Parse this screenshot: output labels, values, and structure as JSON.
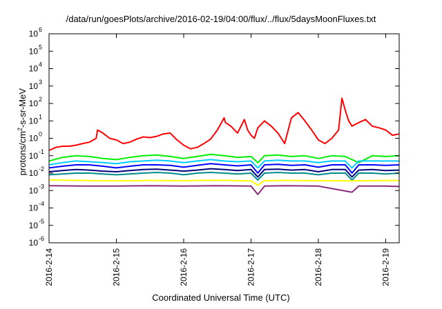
{
  "chart_data": {
    "type": "line",
    "title": "/data/run/goesPlots/archive/2016-02-19/04:00/flux/../flux/5daysMoonFluxes.txt",
    "xlabel": "Coordinated Universal Time (UTC)",
    "ylabel_parts": {
      "pre": "protons/cm",
      "sup": "2",
      "post": "-s-sr-MeV"
    },
    "y_scale": "log",
    "ylim": [
      1e-06,
      1000000.0
    ],
    "y_ticks": [
      {
        "base": "10",
        "exp": "-6",
        "value": 1e-06
      },
      {
        "base": "10",
        "exp": "-5",
        "value": 1e-05
      },
      {
        "base": "10",
        "exp": "-4",
        "value": 0.0001
      },
      {
        "base": "10",
        "exp": "-3",
        "value": 0.001
      },
      {
        "base": "10",
        "exp": "-2",
        "value": 0.01
      },
      {
        "base": "10",
        "exp": "-1",
        "value": 0.1
      },
      {
        "base": "10",
        "exp": "0",
        "value": 1
      },
      {
        "base": "10",
        "exp": "1",
        "value": 10
      },
      {
        "base": "10",
        "exp": "2",
        "value": 100
      },
      {
        "base": "10",
        "exp": "3",
        "value": 1000
      },
      {
        "base": "10",
        "exp": "4",
        "value": 10000
      },
      {
        "base": "10",
        "exp": "5",
        "value": 100000
      },
      {
        "base": "10",
        "exp": "6",
        "value": 1000000
      }
    ],
    "x_ticks": [
      "2016-2-14",
      "2016-2-15",
      "2016-2-16",
      "2016-2-17",
      "2016-2-18",
      "2016-2-19"
    ],
    "x_range_days": [
      0,
      5.2
    ],
    "grid": false,
    "legend": "none",
    "series": [
      {
        "color": "#ff0000",
        "x": [
          0,
          0.1,
          0.2,
          0.3,
          0.4,
          0.5,
          0.6,
          0.7,
          0.72,
          0.8,
          0.9,
          1.0,
          1.1,
          1.2,
          1.3,
          1.4,
          1.5,
          1.6,
          1.7,
          1.8,
          1.9,
          2.0,
          2.1,
          2.2,
          2.3,
          2.4,
          2.5,
          2.6,
          2.62,
          2.7,
          2.8,
          2.9,
          2.95,
          3.0,
          3.05,
          3.1,
          3.2,
          3.3,
          3.4,
          3.45,
          3.5,
          3.6,
          3.7,
          3.8,
          3.9,
          4.0,
          4.1,
          4.2,
          4.3,
          4.35,
          4.4,
          4.45,
          4.5,
          4.6,
          4.7,
          4.8,
          4.9,
          5.0,
          5.1,
          5.2
        ],
        "values": [
          0.2,
          0.3,
          0.35,
          0.35,
          0.4,
          0.5,
          0.6,
          1.0,
          3.0,
          2.0,
          1.0,
          0.8,
          0.5,
          0.6,
          0.9,
          1.2,
          1.1,
          1.3,
          1.8,
          2.0,
          0.8,
          0.4,
          0.25,
          0.3,
          0.5,
          0.9,
          3.0,
          15.0,
          8.0,
          5.0,
          2.0,
          12.0,
          3.0,
          1.5,
          1.0,
          4.0,
          10.0,
          5.0,
          2.0,
          1.0,
          0.5,
          15.0,
          30.0,
          10.0,
          3.0,
          0.8,
          0.5,
          1.0,
          3.0,
          200.0,
          40.0,
          10.0,
          5.0,
          8.0,
          12.0,
          5.0,
          4.0,
          3.0,
          1.5,
          1.8
        ]
      },
      {
        "color": "#00ee00",
        "x": [
          0,
          0.2,
          0.4,
          0.6,
          0.8,
          1.0,
          1.2,
          1.4,
          1.6,
          1.8,
          2.0,
          2.2,
          2.4,
          2.6,
          2.8,
          3.0,
          3.1,
          3.2,
          3.4,
          3.6,
          3.8,
          4.0,
          4.2,
          4.4,
          4.6,
          4.8,
          5.0,
          5.2
        ],
        "values": [
          0.05,
          0.08,
          0.1,
          0.09,
          0.07,
          0.06,
          0.08,
          0.1,
          0.11,
          0.09,
          0.07,
          0.09,
          0.12,
          0.1,
          0.08,
          0.09,
          0.04,
          0.1,
          0.11,
          0.09,
          0.1,
          0.07,
          0.1,
          0.09,
          0.04,
          0.1,
          0.09,
          0.1
        ]
      },
      {
        "color": "#00ccff",
        "x": [
          0,
          0.2,
          0.4,
          0.6,
          0.8,
          1.0,
          1.2,
          1.4,
          1.6,
          1.8,
          2.0,
          2.2,
          2.4,
          2.6,
          2.8,
          3.0,
          3.1,
          3.2,
          3.4,
          3.6,
          3.8,
          4.0,
          4.2,
          4.4,
          4.5,
          4.6,
          4.8,
          5.0,
          5.2
        ],
        "values": [
          0.03,
          0.04,
          0.05,
          0.045,
          0.04,
          0.035,
          0.045,
          0.05,
          0.055,
          0.05,
          0.04,
          0.05,
          0.06,
          0.05,
          0.045,
          0.05,
          0.02,
          0.05,
          0.055,
          0.05,
          0.05,
          0.04,
          0.05,
          0.05,
          0.02,
          0.05,
          0.05,
          0.05,
          0.05
        ]
      },
      {
        "color": "#0000ff",
        "x": [
          0,
          0.2,
          0.4,
          0.6,
          0.8,
          1.0,
          1.2,
          1.4,
          1.6,
          1.8,
          2.0,
          2.2,
          2.4,
          2.6,
          2.8,
          3.0,
          3.1,
          3.2,
          3.4,
          3.6,
          3.8,
          4.0,
          4.2,
          4.4,
          4.5,
          4.6,
          4.8,
          5.0,
          5.2
        ],
        "values": [
          0.02,
          0.025,
          0.03,
          0.03,
          0.025,
          0.02,
          0.025,
          0.03,
          0.03,
          0.028,
          0.022,
          0.028,
          0.035,
          0.03,
          0.026,
          0.03,
          0.01,
          0.03,
          0.032,
          0.028,
          0.03,
          0.022,
          0.03,
          0.03,
          0.01,
          0.03,
          0.03,
          0.028,
          0.03
        ]
      },
      {
        "color": "#000080",
        "x": [
          0,
          0.2,
          0.4,
          0.6,
          0.8,
          1.0,
          1.2,
          1.4,
          1.6,
          1.8,
          2.0,
          2.2,
          2.4,
          2.6,
          2.8,
          3.0,
          3.1,
          3.2,
          3.4,
          3.6,
          3.8,
          4.0,
          4.2,
          4.4,
          4.5,
          4.6,
          4.8,
          5.0,
          5.2
        ],
        "values": [
          0.012,
          0.014,
          0.016,
          0.015,
          0.013,
          0.012,
          0.014,
          0.016,
          0.017,
          0.015,
          0.013,
          0.015,
          0.018,
          0.016,
          0.014,
          0.016,
          0.006,
          0.016,
          0.017,
          0.015,
          0.016,
          0.012,
          0.016,
          0.016,
          0.006,
          0.015,
          0.016,
          0.014,
          0.015
        ]
      },
      {
        "color": "#008b8b",
        "x": [
          0,
          0.2,
          0.4,
          0.6,
          0.8,
          1.0,
          1.2,
          1.4,
          1.6,
          1.8,
          2.0,
          2.2,
          2.4,
          2.6,
          2.8,
          3.0,
          3.1,
          3.2,
          3.4,
          3.6,
          3.8,
          4.0,
          4.2,
          4.4,
          4.5,
          4.6,
          4.8,
          5.0,
          5.2
        ],
        "values": [
          0.008,
          0.009,
          0.01,
          0.01,
          0.009,
          0.008,
          0.009,
          0.01,
          0.011,
          0.01,
          0.008,
          0.01,
          0.011,
          0.01,
          0.009,
          0.01,
          0.004,
          0.01,
          0.011,
          0.01,
          0.01,
          0.008,
          0.01,
          0.01,
          0.004,
          0.01,
          0.01,
          0.009,
          0.01
        ]
      },
      {
        "color": "#ffff00",
        "x": [
          0,
          0.5,
          1.0,
          1.5,
          2.0,
          2.5,
          3.0,
          3.1,
          3.2,
          3.5,
          4.0,
          4.5,
          5.0,
          5.2
        ],
        "values": [
          0.004,
          0.0038,
          0.0036,
          0.0038,
          0.0037,
          0.0039,
          0.0036,
          0.002,
          0.0037,
          0.0038,
          0.0037,
          0.0036,
          0.0038,
          0.0037
        ]
      },
      {
        "color": "#8b2a7a",
        "x": [
          0,
          0.5,
          1.0,
          1.5,
          2.0,
          2.5,
          3.0,
          3.1,
          3.2,
          3.5,
          4.0,
          4.5,
          4.6,
          5.0,
          5.2
        ],
        "values": [
          0.0019,
          0.0018,
          0.0018,
          0.0019,
          0.0018,
          0.0019,
          0.0018,
          0.0006,
          0.0018,
          0.0019,
          0.0018,
          0.0008,
          0.0018,
          0.0018,
          0.0017
        ]
      }
    ]
  }
}
